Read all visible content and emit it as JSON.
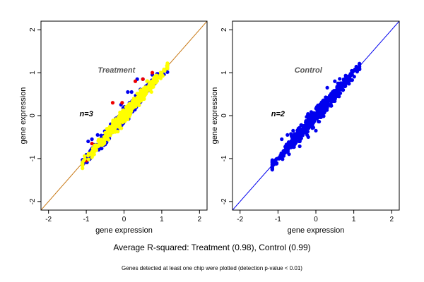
{
  "summary_text": "Average R-squared: Treatment (0.98), Control (0.99)",
  "footnote_text": "Genes detected at least one chip were plotted (detection p-value < 0.01)",
  "chart_data": [
    {
      "type": "scatter",
      "title": "",
      "annotation": "Treatment",
      "n_label": "n=3",
      "xlabel": "gene expression",
      "ylabel": "gene expression",
      "xlim": [
        -2.2,
        2.2
      ],
      "ylim": [
        -2.2,
        2.2
      ],
      "xticks": [
        -2,
        -1,
        0,
        1,
        2
      ],
      "yticks": [
        -2,
        -1,
        0,
        1,
        2
      ],
      "identity_line_color": "#c87814",
      "series": [
        {
          "color": "#0000ee",
          "cloud": {
            "x_range": [
              -1.1,
              1.15
            ],
            "spread": 0.09,
            "count": 300
          },
          "outliers": [
            [
              -0.95,
              -0.6
            ],
            [
              -0.85,
              -0.55
            ],
            [
              -0.7,
              -0.45
            ],
            [
              0.1,
              0.55
            ],
            [
              0.2,
              0.55
            ],
            [
              0.35,
              0.85
            ],
            [
              0.5,
              0.85
            ],
            [
              0.75,
              0.95
            ],
            [
              0.8,
              0.8
            ]
          ]
        },
        {
          "color": "#ee0000",
          "cloud": null,
          "outliers": [
            [
              -1.0,
              -1.05
            ],
            [
              -0.85,
              -0.65
            ],
            [
              -0.7,
              -0.72
            ],
            [
              -0.3,
              0.3
            ],
            [
              -0.05,
              0.3
            ],
            [
              0.3,
              0.8
            ],
            [
              0.5,
              0.85
            ],
            [
              0.6,
              0.55
            ],
            [
              0.75,
              1.0
            ],
            [
              0.85,
              0.8
            ],
            [
              0.15,
              0.2
            ]
          ]
        },
        {
          "color": "#ffff00",
          "cloud": {
            "x_range": [
              -1.1,
              1.15
            ],
            "spread": 0.08,
            "count": 500
          },
          "outliers": []
        }
      ]
    },
    {
      "type": "scatter",
      "title": "",
      "annotation": "Control",
      "n_label": "n=2",
      "xlabel": "gene expression",
      "ylabel": "gene expression",
      "xlim": [
        -2.2,
        2.2
      ],
      "ylim": [
        -2.2,
        2.2
      ],
      "xticks": [
        -2,
        -1,
        0,
        1,
        2
      ],
      "yticks": [
        -2,
        -1,
        0,
        1,
        2
      ],
      "identity_line_color": "#0000ee",
      "series": [
        {
          "color": "#0000ee",
          "cloud": {
            "x_range": [
              -1.15,
              1.15
            ],
            "spread": 0.09,
            "count": 650
          },
          "outliers": [
            [
              -0.9,
              -0.55
            ],
            [
              -0.75,
              -0.45
            ],
            [
              -0.6,
              -0.35
            ],
            [
              0.3,
              0.65
            ],
            [
              0.5,
              0.8
            ],
            [
              -0.2,
              -0.5
            ],
            [
              0.0,
              -0.35
            ]
          ]
        }
      ]
    }
  ]
}
